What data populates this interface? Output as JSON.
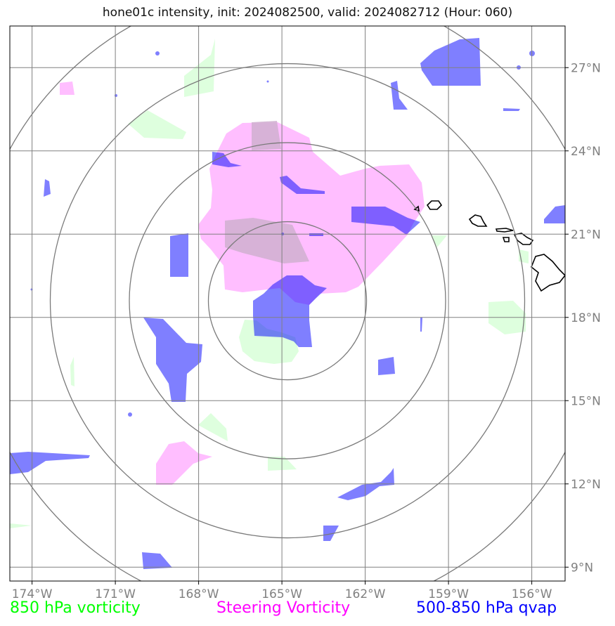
{
  "title": "hone01c intensity, init: 2024082500, valid: 2024082712 (Hour: 060)",
  "map": {
    "lon_ticks": [
      {
        "lon": -174,
        "label": "174°W"
      },
      {
        "lon": -171,
        "label": "171°W"
      },
      {
        "lon": -168,
        "label": "168°W"
      },
      {
        "lon": -165,
        "label": "165°W"
      },
      {
        "lon": -162,
        "label": "162°W"
      },
      {
        "lon": -159,
        "label": "159°W"
      },
      {
        "lon": -156,
        "label": "156°W"
      }
    ],
    "lat_ticks": [
      {
        "lat": 27,
        "label": "27°N"
      },
      {
        "lat": 24,
        "label": "24°N"
      },
      {
        "lat": 21,
        "label": "21°N"
      },
      {
        "lat": 18,
        "label": "18°N"
      },
      {
        "lat": 15,
        "label": "15°N"
      },
      {
        "lat": 12,
        "label": "12°N"
      },
      {
        "lat": 9,
        "label": "9°N"
      }
    ],
    "extent": {
      "lon_min": -174.8,
      "lon_max": -154.8,
      "lat_min": 8.5,
      "lat_max": 28.5
    },
    "storm_center": {
      "lon": -164.8,
      "lat": 18.6
    },
    "range_ring_count": 4,
    "grid": true
  },
  "legend": {
    "vort850": {
      "label": "850 hPa vorticity",
      "color": "#00ff00"
    },
    "steering": {
      "label": "Steering Vorticity",
      "color": "#ff00ff"
    },
    "qvap": {
      "label": "500-850 hPa qvap",
      "color": "#0000ff"
    }
  },
  "colors": {
    "vort850_fill": "#ccffcc",
    "steering_fill": "#ffb3ff",
    "qvap_fill": "#0000ff",
    "grid": "#808080",
    "coast": "#000000"
  }
}
